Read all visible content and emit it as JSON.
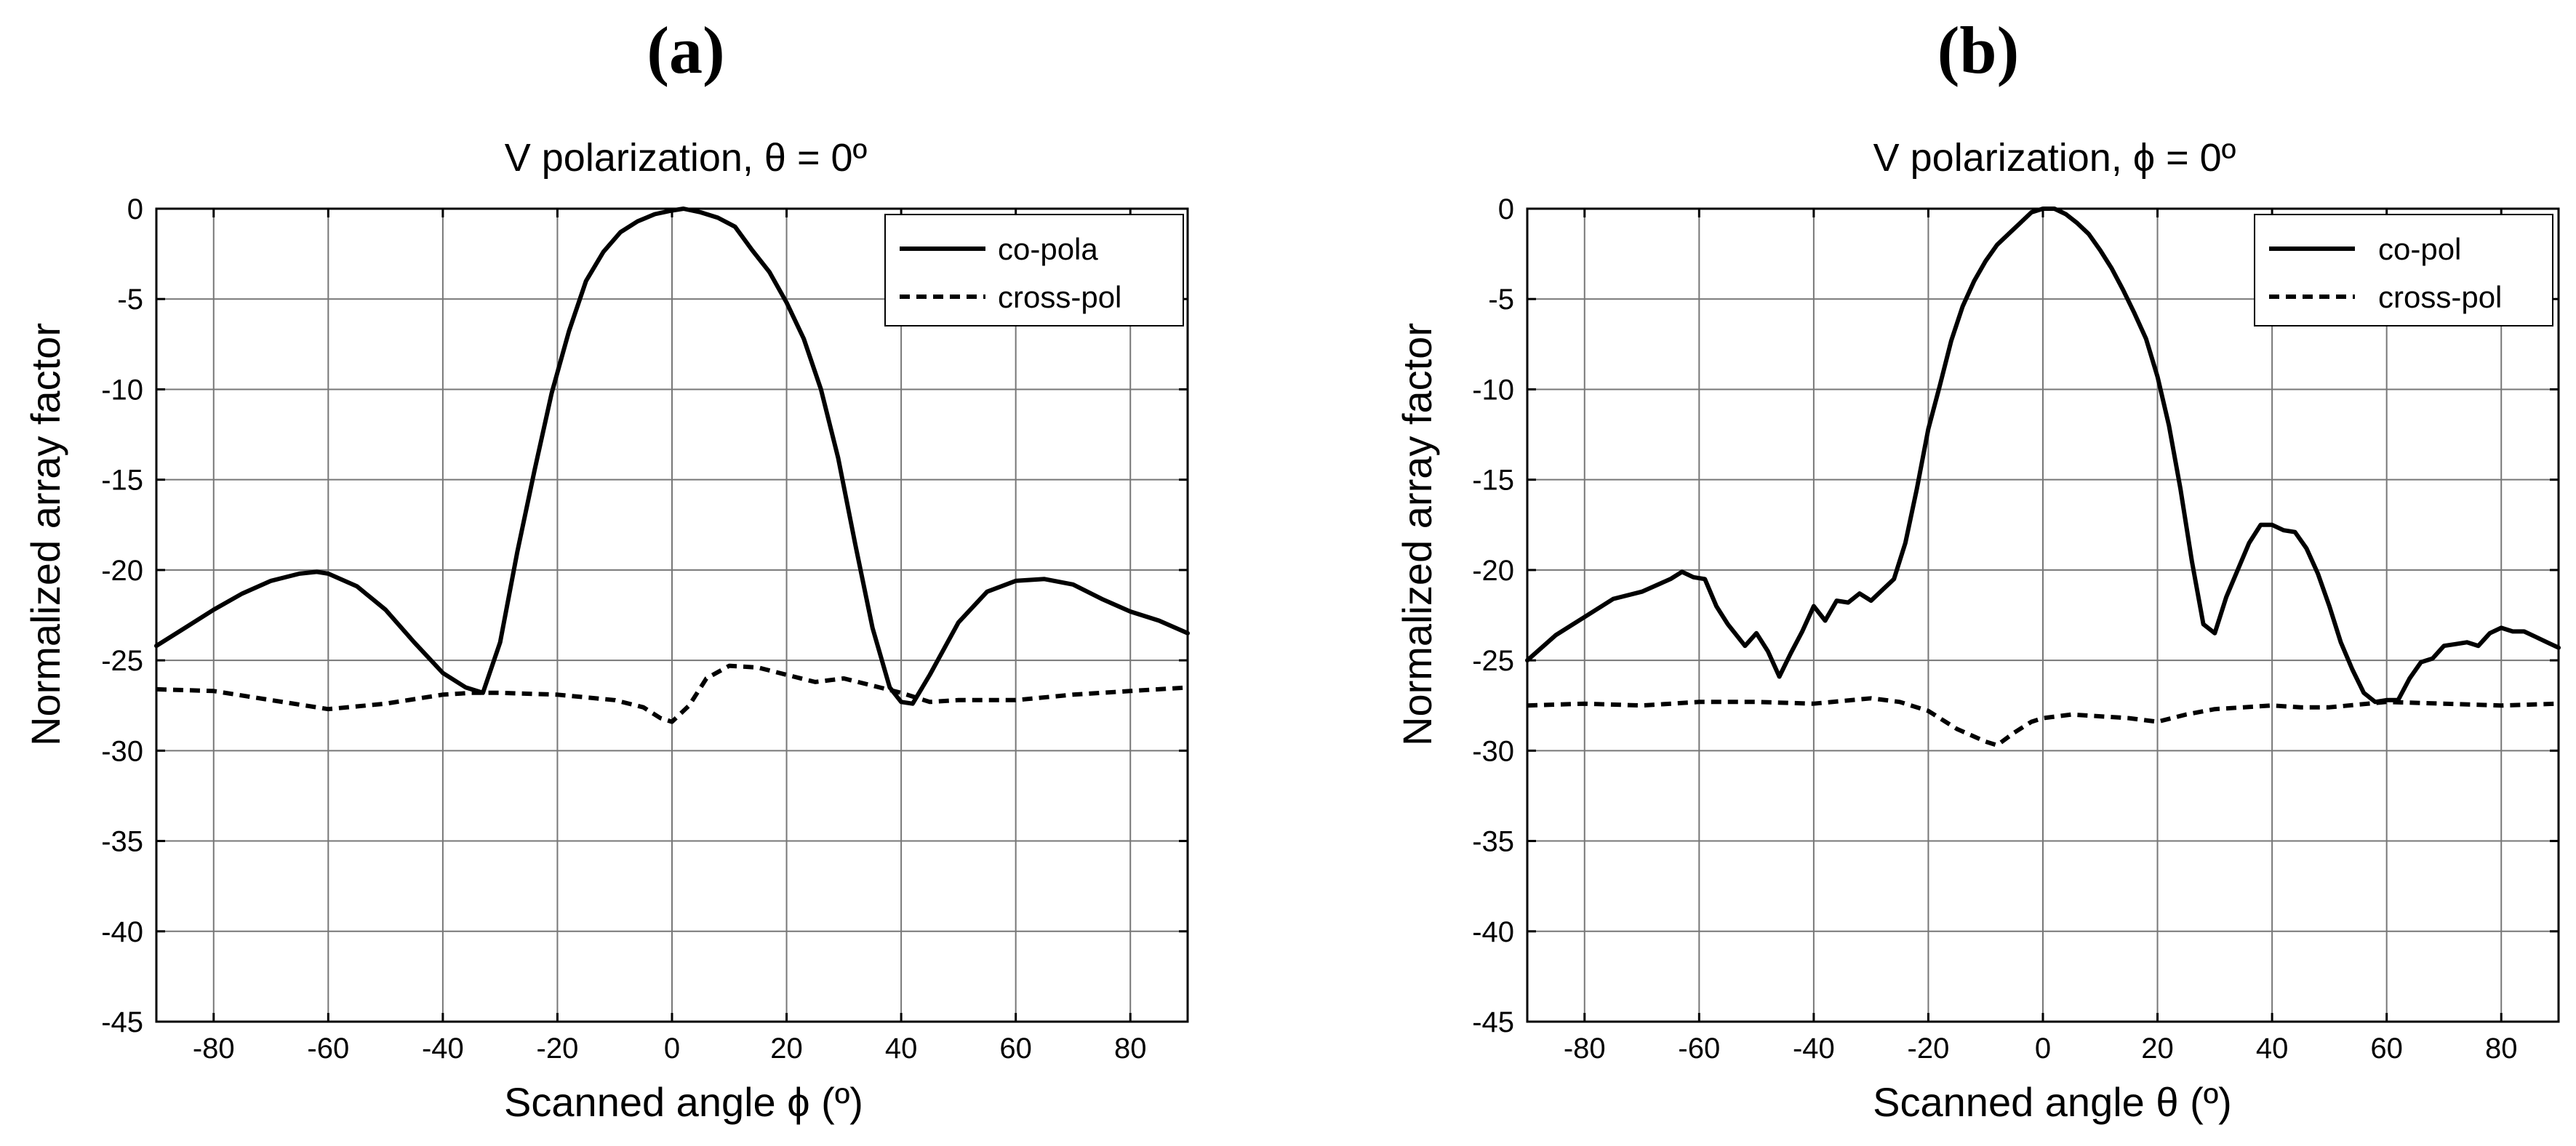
{
  "chart_data": [
    {
      "type": "line",
      "panel_label": "(a)",
      "title": "V polarization, θ = 0º",
      "xlabel": "Scanned angle ϕ (º)",
      "ylabel": "Normalized array factor",
      "xlim": [
        -90,
        90
      ],
      "ylim": [
        -45,
        0
      ],
      "xticks": [
        -80,
        -60,
        -40,
        -20,
        0,
        20,
        40,
        60,
        80
      ],
      "yticks": [
        0,
        -5,
        -10,
        -15,
        -20,
        -25,
        -30,
        -35,
        -40,
        -45
      ],
      "grid": true,
      "legend_position": "top-right",
      "series": [
        {
          "name": "co-pola",
          "style": "solid",
          "x": [
            -90,
            -85,
            -80,
            -75,
            -70,
            -65,
            -62,
            -60,
            -55,
            -50,
            -45,
            -40,
            -36,
            -33,
            -30,
            -27,
            -24,
            -21,
            -18,
            -15,
            -12,
            -9,
            -6,
            -3,
            0,
            2,
            5,
            8,
            11,
            14,
            17,
            20,
            23,
            26,
            29,
            32,
            35,
            38,
            40,
            42,
            45,
            50,
            55,
            60,
            65,
            70,
            75,
            80,
            85,
            90
          ],
          "y": [
            -24.2,
            -23.2,
            -22.2,
            -21.3,
            -20.6,
            -20.2,
            -20.1,
            -20.2,
            -20.9,
            -22.2,
            -24.0,
            -25.7,
            -26.5,
            -26.8,
            -24.0,
            -19.0,
            -14.5,
            -10.2,
            -6.8,
            -4.0,
            -2.4,
            -1.3,
            -0.7,
            -0.3,
            -0.1,
            0.0,
            -0.2,
            -0.5,
            -1.0,
            -2.3,
            -3.5,
            -5.2,
            -7.2,
            -10.0,
            -13.8,
            -18.6,
            -23.2,
            -26.5,
            -27.3,
            -27.4,
            -25.8,
            -22.9,
            -21.2,
            -20.6,
            -20.5,
            -20.8,
            -21.6,
            -22.3,
            -22.8,
            -23.5
          ]
        },
        {
          "name": "cross-pol",
          "style": "dashed",
          "x": [
            -90,
            -80,
            -70,
            -60,
            -50,
            -40,
            -35,
            -30,
            -20,
            -10,
            -5,
            -2,
            0,
            3,
            6,
            10,
            15,
            20,
            25,
            30,
            35,
            40,
            45,
            50,
            60,
            70,
            80,
            90
          ],
          "y": [
            -26.6,
            -26.7,
            -27.2,
            -27.7,
            -27.4,
            -26.9,
            -26.8,
            -26.8,
            -26.9,
            -27.2,
            -27.6,
            -28.2,
            -28.4,
            -27.5,
            -26.0,
            -25.3,
            -25.4,
            -25.8,
            -26.2,
            -26.0,
            -26.4,
            -26.8,
            -27.3,
            -27.2,
            -27.2,
            -26.9,
            -26.7,
            -26.5
          ]
        }
      ]
    },
    {
      "type": "line",
      "panel_label": "(b)",
      "title": "V polarization, ϕ = 0º",
      "xlabel": "Scanned angle θ (º)",
      "ylabel": "Normalized array factor",
      "xlim": [
        -90,
        90
      ],
      "ylim": [
        -45,
        0
      ],
      "xticks": [
        -80,
        -60,
        -40,
        -20,
        0,
        20,
        40,
        60,
        80
      ],
      "yticks": [
        0,
        -5,
        -10,
        -15,
        -20,
        -25,
        -30,
        -35,
        -40,
        -45
      ],
      "grid": true,
      "legend_position": "top-right",
      "series": [
        {
          "name": "co-pol",
          "style": "solid",
          "x": [
            -90,
            -85,
            -80,
            -75,
            -70,
            -65,
            -63,
            -61,
            -59,
            -57,
            -55,
            -52,
            -50,
            -48,
            -46,
            -44,
            -42,
            -40,
            -38,
            -36,
            -34,
            -32,
            -30,
            -28,
            -26,
            -24,
            -22,
            -20,
            -18,
            -16,
            -14,
            -12,
            -10,
            -8,
            -6,
            -4,
            -2,
            0,
            2,
            4,
            6,
            8,
            10,
            12,
            14,
            16,
            18,
            20,
            22,
            24,
            26,
            28,
            30,
            32,
            34,
            36,
            38,
            40,
            42,
            44,
            46,
            48,
            50,
            52,
            54,
            56,
            58,
            60,
            62,
            64,
            66,
            68,
            70,
            72,
            74,
            76,
            78,
            80,
            82,
            84,
            86,
            88,
            90
          ],
          "y": [
            -25.0,
            -23.6,
            -22.6,
            -21.6,
            -21.2,
            -20.5,
            -20.1,
            -20.4,
            -20.5,
            -22.0,
            -23.0,
            -24.2,
            -23.5,
            -24.5,
            -25.9,
            -24.6,
            -23.4,
            -22.0,
            -22.8,
            -21.7,
            -21.8,
            -21.3,
            -21.7,
            -21.1,
            -20.5,
            -18.5,
            -15.5,
            -12.2,
            -9.8,
            -7.3,
            -5.4,
            -4.0,
            -2.9,
            -2.0,
            -1.4,
            -0.8,
            -0.2,
            0.0,
            0.0,
            -0.3,
            -0.8,
            -1.4,
            -2.3,
            -3.3,
            -4.5,
            -5.8,
            -7.2,
            -9.3,
            -12.0,
            -15.5,
            -19.5,
            -23.0,
            -23.5,
            -21.5,
            -20.0,
            -18.5,
            -17.5,
            -17.5,
            -17.8,
            -17.9,
            -18.8,
            -20.2,
            -22.0,
            -24.0,
            -25.5,
            -26.8,
            -27.3,
            -27.2,
            -27.2,
            -26.0,
            -25.1,
            -24.9,
            -24.2,
            -24.1,
            -24.0,
            -24.2,
            -23.5,
            -23.2,
            -23.4,
            -23.4,
            -23.7,
            -24.0,
            -24.3
          ]
        },
        {
          "name": "cross-pol",
          "style": "dashed",
          "x": [
            -90,
            -80,
            -70,
            -60,
            -50,
            -40,
            -30,
            -25,
            -20,
            -15,
            -10,
            -8,
            -5,
            -2,
            0,
            5,
            10,
            15,
            20,
            25,
            30,
            35,
            40,
            45,
            50,
            60,
            70,
            80,
            90
          ],
          "y": [
            -27.5,
            -27.4,
            -27.5,
            -27.3,
            -27.3,
            -27.4,
            -27.1,
            -27.3,
            -27.8,
            -28.8,
            -29.5,
            -29.7,
            -29.0,
            -28.4,
            -28.2,
            -28.0,
            -28.1,
            -28.2,
            -28.4,
            -28.0,
            -27.7,
            -27.6,
            -27.5,
            -27.6,
            -27.6,
            -27.3,
            -27.4,
            -27.5,
            -27.4
          ]
        }
      ]
    }
  ]
}
